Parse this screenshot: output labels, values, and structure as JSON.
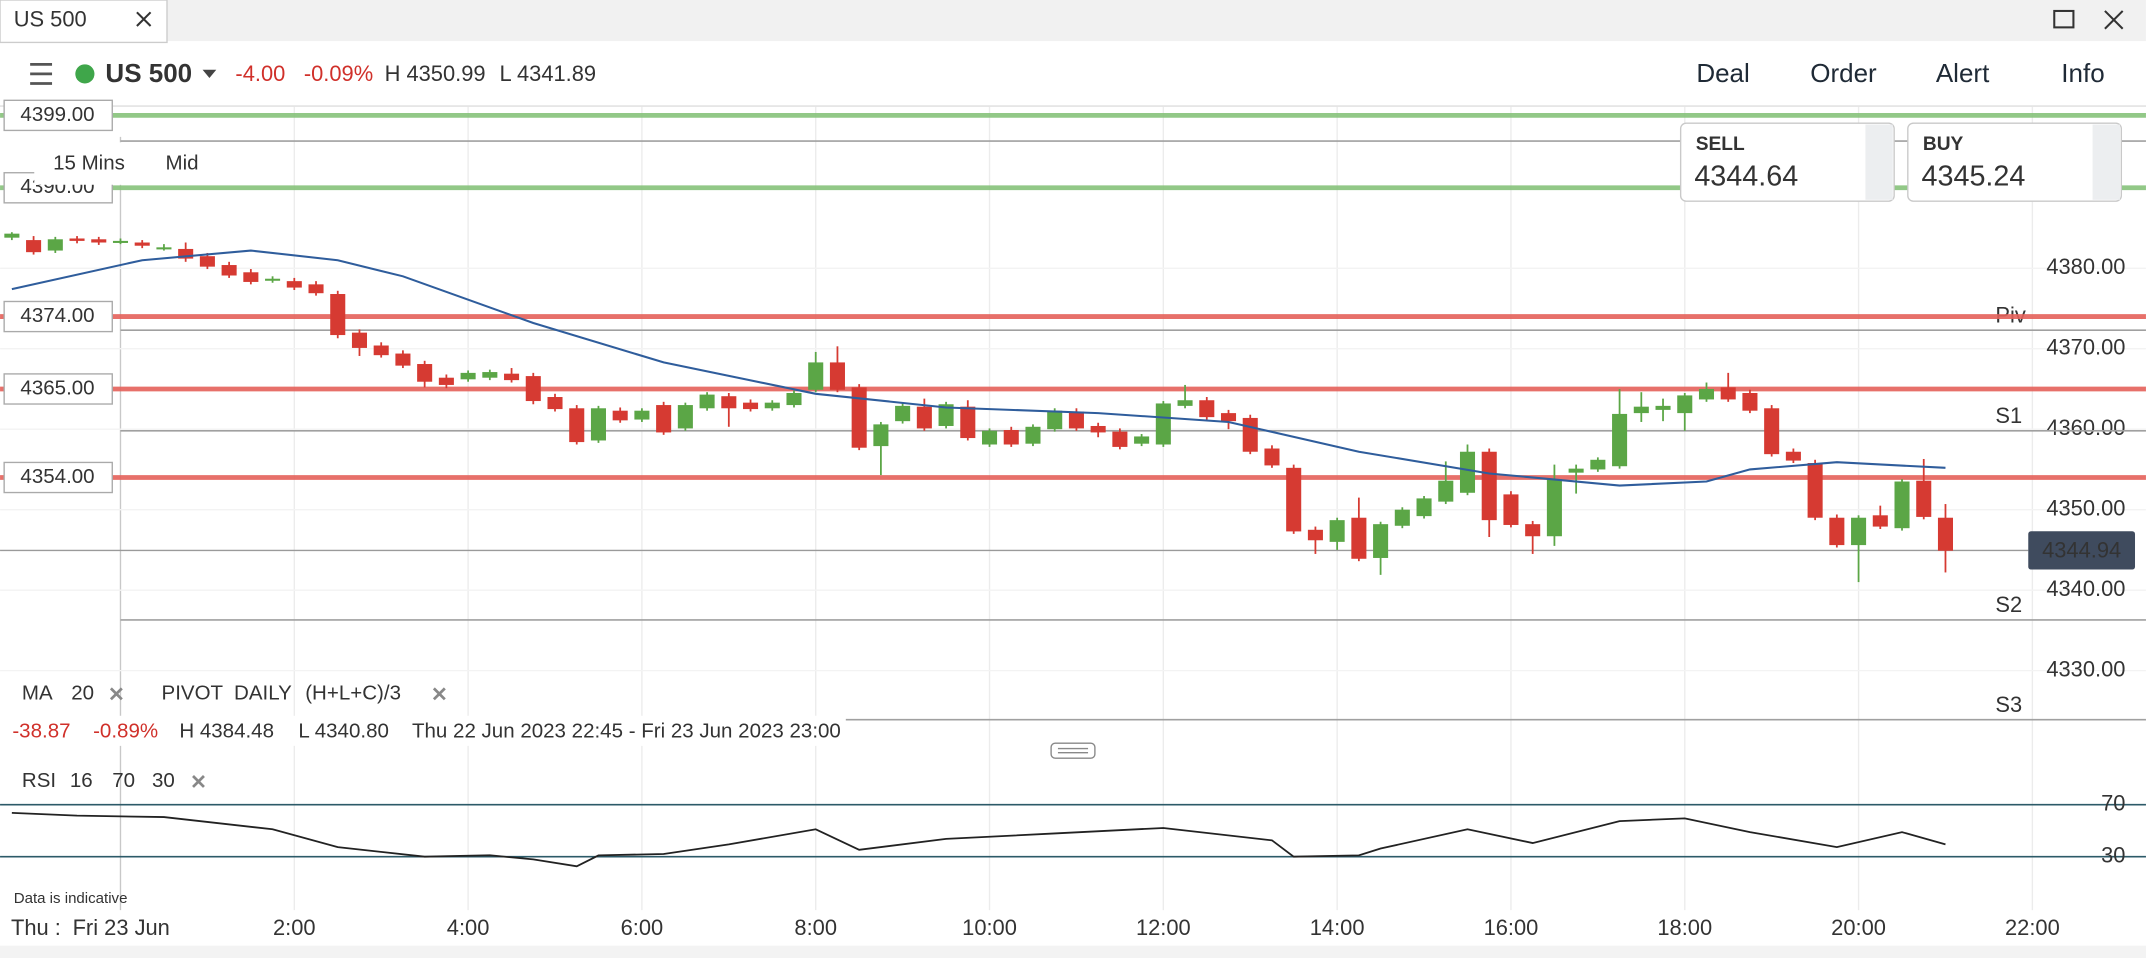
{
  "window": {
    "tab": "US 500"
  },
  "header": {
    "instrument": "US 500",
    "change": "-4.00",
    "change_pct": "-0.09%",
    "high": "H 4350.99",
    "low": "L 4341.89",
    "menu": [
      "Deal",
      "Order",
      "Alert",
      "Info"
    ]
  },
  "ticket": {
    "sell": {
      "label": "SELL",
      "price": "4344.64"
    },
    "buy": {
      "label": "BUY",
      "price": "4345.24"
    }
  },
  "timeframe": [
    "15 Mins",
    "Mid"
  ],
  "legend": {
    "ma": "MA",
    "ma_period": 20,
    "pivot": "PIVOT",
    "pivot_period": "DAILY",
    "pivot_formula": "(H+L+C)/3"
  },
  "stats": {
    "change": "-38.87",
    "change_pct": "-0.89%",
    "high": "H 4384.48",
    "low": "L 4340.80",
    "range": "Thu 22 Jun 2023 22:45 - Fri 23 Jun 2023 23:00"
  },
  "rsi_legend": {
    "name": "RSI",
    "params": [
      16,
      70,
      30
    ]
  },
  "footer": {
    "note": "Data is indicative",
    "date_labels": [
      "Thu :",
      "Fri 23 Jun"
    ]
  },
  "chart_data": [
    {
      "type": "candlestick",
      "up_color": "#5ba646",
      "down_color": "#d63a32",
      "x": [
        -1.25,
        -1,
        -0.75,
        -0.5,
        -0.25,
        0,
        0.25,
        0.5,
        0.75,
        1,
        1.25,
        1.5,
        1.75,
        2,
        2.25,
        2.5,
        2.75,
        3,
        3.25,
        3.5,
        3.75,
        4,
        4.25,
        4.5,
        4.75,
        5,
        5.25,
        5.5,
        5.75,
        6,
        6.25,
        6.5,
        6.75,
        7,
        7.25,
        7.5,
        7.75,
        8,
        8.25,
        8.5,
        8.75,
        9,
        9.25,
        9.5,
        9.75,
        10,
        10.25,
        10.5,
        10.75,
        11,
        11.25,
        11.5,
        11.75,
        12,
        12.25,
        12.5,
        12.75,
        13,
        13.25,
        13.5,
        13.75,
        14,
        14.25,
        14.5,
        14.75,
        15,
        15.25,
        15.5,
        15.75,
        16,
        16.25,
        16.5,
        16.75,
        17,
        17.25,
        17.5,
        17.75,
        18,
        18.25,
        18.5,
        18.75,
        19,
        19.25,
        19.5,
        19.75,
        20,
        20.25,
        20.5,
        20.75,
        21
      ],
      "open": [
        4383.8,
        4383.5,
        4382.2,
        4383.7,
        4383.6,
        4383.3,
        4383.2,
        4382.6,
        4382.4,
        4381.5,
        4380.4,
        4379.5,
        4378.5,
        4378.4,
        4378.0,
        4376.8,
        4372.0,
        4370.4,
        4369.4,
        4368.1,
        4366.4,
        4366.2,
        4366.4,
        4366.9,
        4366.6,
        4364.0,
        4362.6,
        4358.6,
        4362.3,
        4361.2,
        4363.0,
        4360.1,
        4362.6,
        4364.1,
        4363.3,
        4362.6,
        4363.0,
        4364.9,
        4368.3,
        4365.2,
        4357.9,
        4361.0,
        4362.8,
        4360.4,
        4362.8,
        4358.1,
        4359.9,
        4358.2,
        4360.0,
        4362.2,
        4360.4,
        4359.7,
        4358.2,
        4358.1,
        4362.9,
        4363.6,
        4362.0,
        4361.4,
        4357.6,
        4355.2,
        4347.5,
        4346.0,
        4349.0,
        4344.0,
        4348.0,
        4349.2,
        4351.0,
        4352.1,
        4357.2,
        4351.9,
        4348.2,
        4346.7,
        4354.6,
        4355.0,
        4355.4,
        4362.0,
        4362.4,
        4362.0,
        4363.7,
        4365.2,
        4364.5,
        4362.6,
        4357.2,
        4355.8,
        4349.0,
        4345.6,
        4349.3,
        4347.7,
        4353.6,
        4349.0
      ],
      "high": [
        4384.48,
        4384.0,
        4383.9,
        4384.0,
        4383.9,
        4383.7,
        4383.5,
        4383.0,
        4383.2,
        4381.9,
        4380.8,
        4379.9,
        4379.0,
        4378.8,
        4378.4,
        4377.2,
        4372.4,
        4370.8,
        4369.8,
        4368.5,
        4366.8,
        4367.3,
        4367.4,
        4367.6,
        4367.0,
        4364.4,
        4363.0,
        4362.9,
        4362.7,
        4362.6,
        4363.4,
        4363.3,
        4364.6,
        4364.5,
        4363.7,
        4363.6,
        4364.8,
        4369.6,
        4370.3,
        4365.6,
        4360.9,
        4363.2,
        4363.8,
        4363.4,
        4363.6,
        4360.1,
        4360.3,
        4360.6,
        4362.6,
        4362.6,
        4360.8,
        4360.1,
        4359.4,
        4363.5,
        4365.5,
        4364.0,
        4362.4,
        4361.8,
        4358.0,
        4355.6,
        4347.9,
        4349.0,
        4351.5,
        4348.5,
        4350.3,
        4351.7,
        4356.0,
        4358.1,
        4357.6,
        4352.3,
        4348.6,
        4355.6,
        4355.6,
        4356.5,
        4365.0,
        4364.6,
        4363.8,
        4364.5,
        4365.8,
        4367.0,
        4364.9,
        4363.0,
        4357.6,
        4356.2,
        4349.4,
        4349.3,
        4350.5,
        4353.8,
        4356.3,
        4350.7
      ],
      "low": [
        4383.5,
        4381.7,
        4381.9,
        4383.1,
        4382.9,
        4383.0,
        4382.5,
        4382.2,
        4380.8,
        4379.9,
        4378.8,
        4378.0,
        4378.2,
        4377.3,
        4376.6,
        4371.3,
        4369.1,
        4368.9,
        4367.6,
        4365.2,
        4365.1,
        4365.9,
        4366.1,
        4365.8,
        4363.1,
        4362.2,
        4358.1,
        4358.3,
        4360.8,
        4360.9,
        4359.3,
        4359.8,
        4362.3,
        4360.3,
        4362.2,
        4362.3,
        4362.7,
        4364.6,
        4364.6,
        4357.4,
        4354.3,
        4360.7,
        4359.8,
        4360.1,
        4358.6,
        4357.8,
        4357.8,
        4357.9,
        4359.7,
        4359.8,
        4359.0,
        4357.5,
        4357.9,
        4357.8,
        4362.6,
        4361.2,
        4360.0,
        4356.9,
        4355.2,
        4347.0,
        4344.5,
        4345.0,
        4343.6,
        4341.9,
        4347.7,
        4348.9,
        4350.7,
        4351.8,
        4346.6,
        4347.8,
        4344.5,
        4345.5,
        4352.0,
        4354.7,
        4355.1,
        4360.9,
        4361.0,
        4359.8,
        4363.4,
        4363.4,
        4362.0,
        4356.6,
        4355.8,
        4348.7,
        4345.3,
        4341.0,
        4347.6,
        4347.4,
        4348.8,
        4342.2
      ],
      "close": [
        4384.3,
        4382.0,
        4383.6,
        4383.4,
        4383.2,
        4383.4,
        4382.8,
        4382.6,
        4381.2,
        4380.2,
        4379.1,
        4378.3,
        4378.7,
        4377.6,
        4376.9,
        4371.7,
        4370.1,
        4369.2,
        4367.9,
        4365.9,
        4365.5,
        4367.0,
        4367.1,
        4366.1,
        4363.5,
        4362.5,
        4358.4,
        4362.6,
        4361.1,
        4362.3,
        4359.6,
        4363.0,
        4364.3,
        4362.6,
        4362.5,
        4363.3,
        4364.5,
        4368.3,
        4364.9,
        4357.7,
        4360.6,
        4362.9,
        4360.1,
        4363.1,
        4358.9,
        4359.8,
        4358.1,
        4360.3,
        4362.3,
        4360.1,
        4359.6,
        4357.8,
        4359.1,
        4363.2,
        4363.6,
        4361.5,
        4361.0,
        4357.2,
        4355.5,
        4347.3,
        4346.2,
        4348.7,
        4343.9,
        4348.2,
        4350.0,
        4351.4,
        4353.6,
        4357.2,
        4348.7,
        4348.1,
        4346.7,
        4353.8,
        4355.1,
        4356.2,
        4361.9,
        4362.8,
        4362.9,
        4364.2,
        4365.0,
        4363.7,
        4362.3,
        4356.9,
        4356.1,
        4349.0,
        4345.6,
        4349.0,
        4347.9,
        4353.5,
        4349.1,
        4344.9
      ],
      "series": [
        {
          "name": "MA",
          "color": "#2f5d9c",
          "x": [
            -1.25,
            0.25,
            1.5,
            2.5,
            3.25,
            4.75,
            6.25,
            8,
            9.5,
            11.25,
            12.75,
            14.25,
            15.75,
            17.25,
            18.25,
            18.75,
            19.75,
            21
          ],
          "values": [
            4377.4,
            4381.0,
            4382.2,
            4381.0,
            4379.0,
            4373.2,
            4368.3,
            4364.4,
            4362.7,
            4362.0,
            4360.9,
            4357.2,
            4354.5,
            4353.0,
            4353.5,
            4355.0,
            4355.9,
            4355.2
          ]
        }
      ],
      "levels": [
        {
          "value": 4399,
          "label": "4399.00",
          "color": "#86c27a"
        },
        {
          "value": 4390,
          "label": "4390.00",
          "color": "#86c27a"
        },
        {
          "value": 4374,
          "label": "4374.00",
          "color": "#e4605a"
        },
        {
          "value": 4365,
          "label": "4365.00",
          "color": "#e4605a"
        },
        {
          "value": 4354,
          "label": "4354.00",
          "color": "#e4605a"
        }
      ],
      "pivots": [
        {
          "value": 4395.8
        },
        {
          "value": 4372.3,
          "label": "Piv"
        },
        {
          "value": 4359.8,
          "label": "S1"
        },
        {
          "value": 4336.3,
          "label": "S2"
        },
        {
          "value": 4323.9,
          "label": "S3"
        }
      ],
      "current": {
        "value": 4344.94,
        "label": "4344.94"
      },
      "xlim": [
        -1.386,
        23.307
      ],
      "ylim": [
        4321.5,
        4400.07
      ],
      "xticks": [
        {
          "value": 2,
          "label": "2:00"
        },
        {
          "value": 4,
          "label": "4:00"
        },
        {
          "value": 6,
          "label": "6:00"
        },
        {
          "value": 8,
          "label": "8:00"
        },
        {
          "value": 10,
          "label": "10:00"
        },
        {
          "value": 12,
          "label": "12:00"
        },
        {
          "value": 14,
          "label": "14:00"
        },
        {
          "value": 16,
          "label": "16:00"
        },
        {
          "value": 18,
          "label": "18:00"
        },
        {
          "value": 20,
          "label": "20:00"
        },
        {
          "value": 22,
          "label": "22:00"
        }
      ],
      "yticks": [
        {
          "value": 4380,
          "label": "4380.00"
        },
        {
          "value": 4370,
          "label": "4370.00"
        },
        {
          "value": 4360,
          "label": "4360.00"
        },
        {
          "value": 4350,
          "label": "4350.00"
        },
        {
          "value": 4340,
          "label": "4340.00"
        },
        {
          "value": 4330,
          "label": "4330.00"
        }
      ],
      "grid": true
    },
    {
      "type": "line",
      "color": "#222222",
      "x": [
        -1.25,
        -0.5,
        0.5,
        1.75,
        2.5,
        3.5,
        4.25,
        4.75,
        5.25,
        5.5,
        6.25,
        7,
        8,
        8.5,
        9.5,
        10.75,
        12,
        13.25,
        13.5,
        14.25,
        14.5,
        15.5,
        16.25,
        17.25,
        18,
        18.75,
        19.75,
        20.5,
        21
      ],
      "values": [
        63.7,
        61.6,
        60.5,
        51.1,
        37.4,
        30,
        31.1,
        27.9,
        22.6,
        31,
        32.1,
        39.5,
        51.1,
        35.3,
        43.7,
        47.9,
        52.1,
        42.6,
        30,
        31,
        36.3,
        51.1,
        40.5,
        57.4,
        59.5,
        48.9,
        37.4,
        48.9,
        39.5
      ],
      "xlim": [
        -1.386,
        23.307
      ],
      "ylim": [
        4.7,
        103.7
      ],
      "yticks": [
        70,
        30
      ]
    }
  ]
}
